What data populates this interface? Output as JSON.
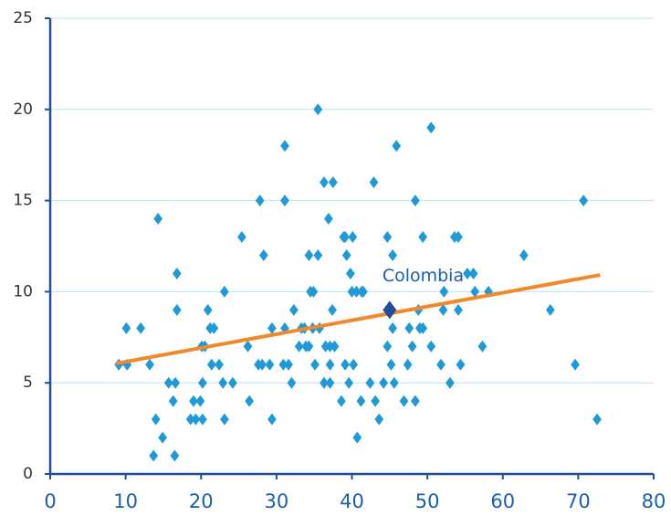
{
  "chart_data": {
    "type": "scatter",
    "x": [
      9.1,
      10.2,
      10.1,
      12,
      13.2,
      13.7,
      14,
      14.3,
      14.9,
      15.7,
      16.3,
      16.6,
      16.5,
      16.8,
      16.8,
      18.6,
      19,
      19.3,
      19.9,
      20.1,
      20.2,
      20.5,
      20.2,
      20.9,
      21.2,
      21.4,
      21.7,
      22.4,
      22.9,
      23.1,
      23.1,
      24.2,
      25.4,
      26.2,
      26.4,
      27.6,
      27.8,
      28.3,
      28.1,
      29.1,
      29.4,
      29.4,
      30.9,
      31.1,
      31.1,
      31.1,
      31.6,
      32,
      32.3,
      33,
      33.3,
      33.7,
      33.9,
      34.3,
      34.3,
      34.5,
      34.8,
      34.9,
      35.1,
      35.5,
      35.5,
      35.7,
      36.3,
      36.3,
      36.5,
      36.9,
      37.1,
      37.1,
      37.1,
      37.5,
      37.7,
      37.4,
      38.6,
      38.9,
      39.1,
      39.1,
      39.3,
      39.6,
      39.8,
      40,
      40.1,
      40.2,
      40.6,
      40.7,
      41.3,
      41.2,
      41.5,
      42.4,
      42.9,
      43.1,
      43.6,
      44.2,
      44.7,
      44.7,
      45.2,
      45.4,
      45.4,
      45.6,
      45.9,
      46.9,
      47.4,
      47.6,
      48,
      48.4,
      48.4,
      48.8,
      49,
      49.4,
      49.4,
      50.5,
      50.5,
      51.8,
      52.1,
      52.2,
      53,
      53.6,
      54.1,
      54.1,
      54.4,
      55.3,
      56.1,
      56.3,
      57.3,
      58.1,
      62.8,
      66.3,
      69.6,
      70.7,
      72.5
    ],
    "values": [
      6,
      6,
      8,
      8,
      6,
      1,
      3,
      14,
      2,
      5,
      4,
      5,
      1,
      11,
      9,
      3,
      4,
      3,
      4,
      7,
      5,
      7,
      3,
      9,
      8,
      6,
      8,
      6,
      5,
      3,
      10,
      5,
      13,
      7,
      4,
      6,
      15,
      12,
      6,
      6,
      3,
      8,
      6,
      8,
      15,
      18,
      6,
      5,
      9,
      7,
      8,
      8,
      7,
      7,
      12,
      10,
      8,
      10,
      6,
      12,
      20,
      8,
      5,
      16,
      7,
      14,
      7,
      5,
      6,
      16,
      7,
      9,
      4,
      13,
      6,
      13,
      12,
      5,
      11,
      10,
      13,
      6,
      10,
      2,
      10,
      4,
      10,
      5,
      16,
      4,
      3,
      5,
      7,
      13,
      6,
      12,
      8,
      5,
      18,
      4,
      6,
      8,
      7,
      4,
      15,
      9,
      8,
      8,
      13,
      19,
      7,
      6,
      9,
      10,
      5,
      13,
      13,
      9,
      6,
      11,
      11,
      10,
      7,
      10,
      12,
      9,
      6,
      15,
      3
    ],
    "color": "#1f9ad8",
    "highlight": {
      "label": "Colombia",
      "x": 45,
      "y": 9,
      "color": "#1f4e9a"
    },
    "trendline": {
      "x": [
        8.7,
        72.9
      ],
      "values": [
        6.06,
        10.92
      ],
      "color": "#f0892a"
    },
    "xlim": [
      0,
      80
    ],
    "xticks": [
      0,
      10,
      20,
      30,
      40,
      50,
      60,
      70,
      80
    ],
    "ylim": [
      0,
      25
    ],
    "yticks": [
      0,
      5,
      10,
      15,
      20,
      25
    ],
    "grid": true
  }
}
